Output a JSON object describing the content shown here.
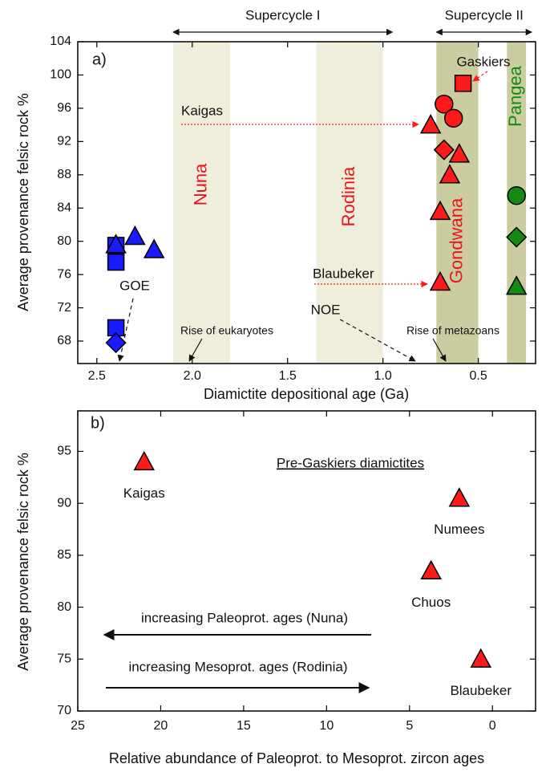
{
  "chart_data": [
    {
      "type": "scatter",
      "panel_label": "a)",
      "xlabel": "Diamictite depositional age (Ga)",
      "ylabel": "Average provenance felsic rock %",
      "xlim": [
        2.6,
        0.2
      ],
      "ylim": [
        65.3,
        104
      ],
      "xticks": [
        2.5,
        {
          "value": 2,
          "label": "2.0"
        },
        1.5,
        {
          "value": 1,
          "label": "1.0"
        },
        0.5
      ],
      "yticks": [
        68,
        72,
        76,
        80,
        84,
        88,
        92,
        96,
        100,
        104
      ],
      "bands": [
        {
          "label": "Nuna",
          "range": [
            2.1,
            1.8
          ],
          "color": "#efeedd",
          "label_color": "#e8141b"
        },
        {
          "label": "Rodinia",
          "range": [
            1.35,
            1.0
          ],
          "color": "#efeedd",
          "label_color": "#e8141b"
        },
        {
          "label": "Gondwana",
          "range": [
            0.72,
            0.5
          ],
          "color": "#cbcda0",
          "label_color": "#e8141b"
        },
        {
          "label": "Pangea",
          "range": [
            0.35,
            0.25
          ],
          "color": "#cbcda0",
          "label_color": "#138a13"
        }
      ],
      "supercycles": [
        {
          "label": "Supercycle I",
          "range": [
            2.1,
            0.95
          ]
        },
        {
          "label": "Supercycle II",
          "range": [
            0.72,
            0.22
          ]
        }
      ],
      "series": [
        {
          "marker": "square",
          "color": "#1a1aff",
          "x": [
            2.4,
            2.4,
            2.4
          ],
          "values": [
            79.5,
            77.5,
            69.6
          ]
        },
        {
          "marker": "diamond",
          "color": "#1a1aff",
          "x": [
            2.4
          ],
          "values": [
            67.8
          ]
        },
        {
          "marker": "triangle",
          "color": "#1a1aff",
          "x": [
            2.4,
            2.3,
            2.2
          ],
          "values": [
            79.6,
            80.6,
            79
          ]
        },
        {
          "marker": "square",
          "color": "#ff1a1a",
          "x": [
            0.58
          ],
          "values": [
            99
          ]
        },
        {
          "marker": "circle",
          "color": "#ff1a1a",
          "x": [
            0.68,
            0.63
          ],
          "values": [
            96.5,
            94.8
          ]
        },
        {
          "marker": "triangle",
          "color": "#ff1a1a",
          "x": [
            0.75,
            0.6,
            0.65,
            0.7,
            0.7
          ],
          "values": [
            94,
            90.5,
            88,
            83.6,
            75.1
          ]
        },
        {
          "marker": "diamond",
          "color": "#ff1a1a",
          "x": [
            0.68
          ],
          "values": [
            91
          ]
        },
        {
          "marker": "circle",
          "color": "#138a13",
          "x": [
            0.3
          ],
          "values": [
            85.5
          ]
        },
        {
          "marker": "diamond",
          "color": "#138a13",
          "x": [
            0.3
          ],
          "values": [
            80.5
          ]
        },
        {
          "marker": "triangle",
          "color": "#138a13",
          "x": [
            0.3
          ],
          "values": [
            74.6
          ]
        }
      ],
      "annotations": [
        "Gaskiers",
        "Kaigas",
        "Blaubeker",
        "GOE",
        "NOE",
        "Rise of eukaryotes",
        "Rise of metazoans"
      ]
    },
    {
      "type": "scatter",
      "panel_label": "b)",
      "subtitle": "Pre-Gaskiers diamictites",
      "xlabel": "Relative abundance of Paleoprot. to Mesoprot. zircon ages",
      "ylabel": "Average provenance felsic rock %",
      "xlim": [
        25,
        -2.6
      ],
      "ylim": [
        70,
        98.9
      ],
      "xticks": [
        25,
        20,
        15,
        10,
        5,
        0
      ],
      "yticks": [
        70,
        75,
        80,
        85,
        90,
        95
      ],
      "series": [
        {
          "marker": "triangle",
          "color": "#ff1a1a",
          "x": [
            21,
            2,
            3.7,
            0.7
          ],
          "values": [
            94,
            90.5,
            83.5,
            75
          ],
          "point_labels": [
            "Kaigas",
            "Numees",
            "Chuos",
            "Blaubeker"
          ]
        }
      ],
      "annotations": [
        "increasing Paleoprot. ages (Nuna)",
        "increasing Mesoprot. ages (Rodinia)"
      ]
    }
  ]
}
